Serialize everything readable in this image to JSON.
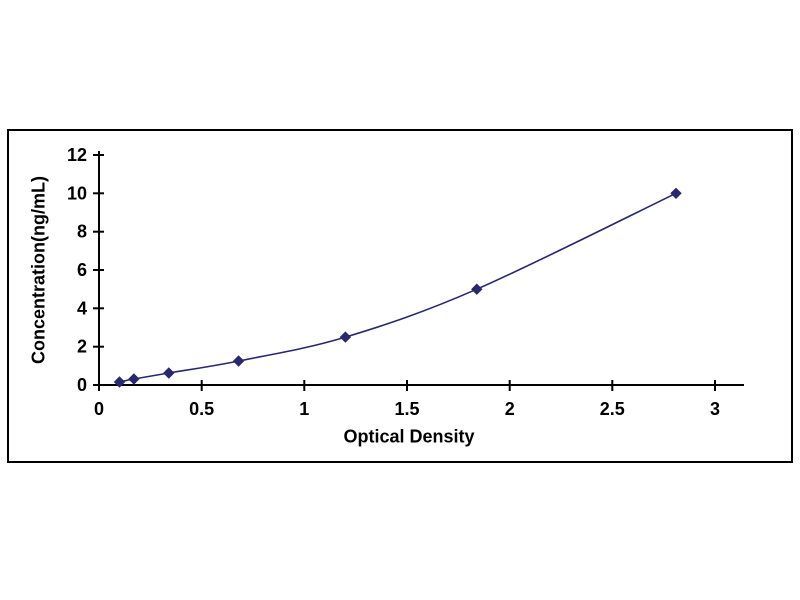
{
  "figure": {
    "background_color": "#ffffff",
    "border_color": "#000000"
  },
  "chart_data": {
    "type": "line",
    "title": "",
    "xlabel": "Optical Density",
    "ylabel": "Concentration(ng/mL)",
    "x": [
      0.1,
      0.17,
      0.34,
      0.68,
      1.2,
      1.84,
      2.81
    ],
    "y": [
      0.156,
      0.312,
      0.625,
      1.25,
      2.5,
      5,
      10
    ],
    "x_ticks": [
      0,
      0.5,
      1,
      1.5,
      2,
      2.5,
      3
    ],
    "x_tick_labels": [
      "0",
      "0.5",
      "1",
      "1.5",
      "2",
      "2.5",
      "3"
    ],
    "y_ticks": [
      0,
      2,
      4,
      6,
      8,
      10,
      12
    ],
    "y_tick_labels": [
      "0",
      "2",
      "4",
      "6",
      "8",
      "10",
      "12"
    ],
    "xlim": [
      0,
      3.15
    ],
    "ylim": [
      0,
      12
    ],
    "grid": false,
    "legend": null,
    "line_color": "#28286e",
    "marker": "diamond",
    "marker_color": "#28286e",
    "axis_color": "#000000"
  }
}
